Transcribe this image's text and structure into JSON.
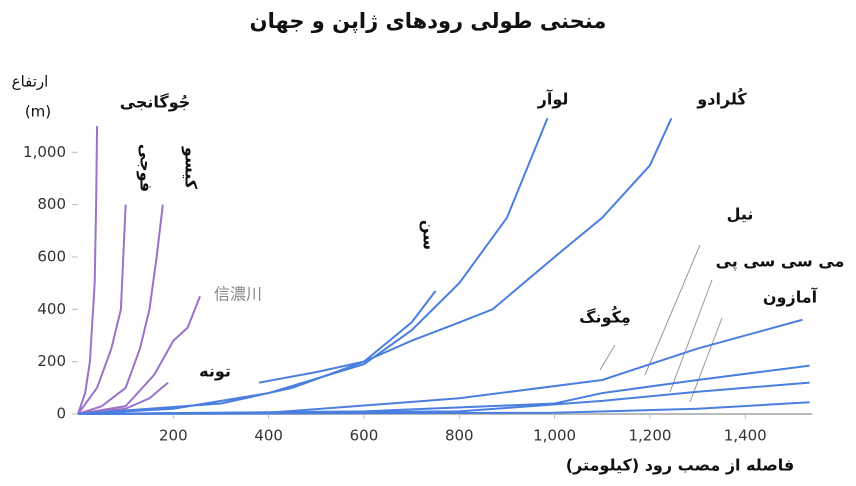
{
  "chart_data": {
    "type": "line",
    "title": "منحنی طولی رودهای ژاپن و جهان",
    "y_label": "ارتفاع",
    "y_unit": "(m)",
    "x_label": "فاصله از مصب رود (کیلومتر)",
    "xlim": [
      0,
      1540
    ],
    "ylim": [
      0,
      1150
    ],
    "xticks": [
      200,
      400,
      600,
      800,
      {
        "value": 1000,
        "label": "1,000"
      },
      {
        "value": 1200,
        "label": "1,200"
      },
      {
        "value": 1400,
        "label": "1,400"
      }
    ],
    "yticks": [
      0,
      200,
      400,
      600,
      800,
      {
        "value": 1000,
        "label": "1,000"
      }
    ],
    "series": [
      {
        "name": "جُوگانجی",
        "color": "#9a72c8",
        "x": [
          0,
          15,
          25,
          30,
          35,
          38,
          40
        ],
        "values": [
          0,
          80,
          200,
          350,
          500,
          800,
          1100
        ]
      },
      {
        "name": "فوجی",
        "color": "#9a72c8",
        "x": [
          0,
          40,
          70,
          90,
          95,
          100
        ],
        "values": [
          0,
          100,
          250,
          400,
          600,
          800
        ]
      },
      {
        "name": "کیسو",
        "color": "#9a72c8",
        "x": [
          0,
          50,
          100,
          130,
          150,
          165,
          178
        ],
        "values": [
          0,
          30,
          100,
          250,
          400,
          600,
          800
        ]
      },
      {
        "name": "信濃川",
        "color": "#9a72c8",
        "x": [
          0,
          100,
          160,
          200,
          230,
          256
        ],
        "values": [
          0,
          30,
          150,
          280,
          330,
          450
        ]
      },
      {
        "name": "تونه",
        "color": "#9a72c8",
        "x": [
          0,
          100,
          150,
          189
        ],
        "values": [
          0,
          20,
          60,
          120
        ]
      },
      {
        "name": "سن",
        "color": "#4a7fe0",
        "x": [
          0,
          300,
          450,
          600,
          700,
          750
        ],
        "values": [
          0,
          40,
          100,
          200,
          350,
          470
        ]
      },
      {
        "name": "لوآر",
        "color": "#4a7fe0",
        "x": [
          0,
          200,
          400,
          600,
          700,
          800,
          900,
          985
        ],
        "values": [
          0,
          20,
          80,
          190,
          320,
          500,
          750,
          1130
        ]
      },
      {
        "name": "کُلرادو",
        "color": "#4a7fe0",
        "x": [
          380,
          500,
          600,
          700,
          800,
          870,
          1000,
          1100,
          1200,
          1245
        ],
        "values": [
          120,
          160,
          200,
          280,
          350,
          400,
          600,
          750,
          950,
          1130
        ]
      },
      {
        "name": "نیل",
        "color": "#4a7fe0",
        "x": [
          0,
          400,
          800,
          1100,
          1300,
          1520
        ],
        "values": [
          0,
          5,
          60,
          130,
          250,
          360
        ]
      },
      {
        "name": "می سی سی پی",
        "color": "#4a7fe0",
        "x": [
          0,
          600,
          1000,
          1100,
          1300,
          1535
        ],
        "values": [
          0,
          10,
          40,
          80,
          130,
          185
        ]
      },
      {
        "name": "آمازون",
        "color": "#4a7fe0",
        "x": [
          0,
          800,
          1100,
          1300,
          1535
        ],
        "values": [
          0,
          10,
          50,
          85,
          120
        ]
      },
      {
        "name": "مِکُونگ",
        "color": "#4a7fe0",
        "x": [
          0,
          1000,
          1300,
          1535
        ],
        "values": [
          0,
          5,
          20,
          45
        ]
      }
    ]
  }
}
